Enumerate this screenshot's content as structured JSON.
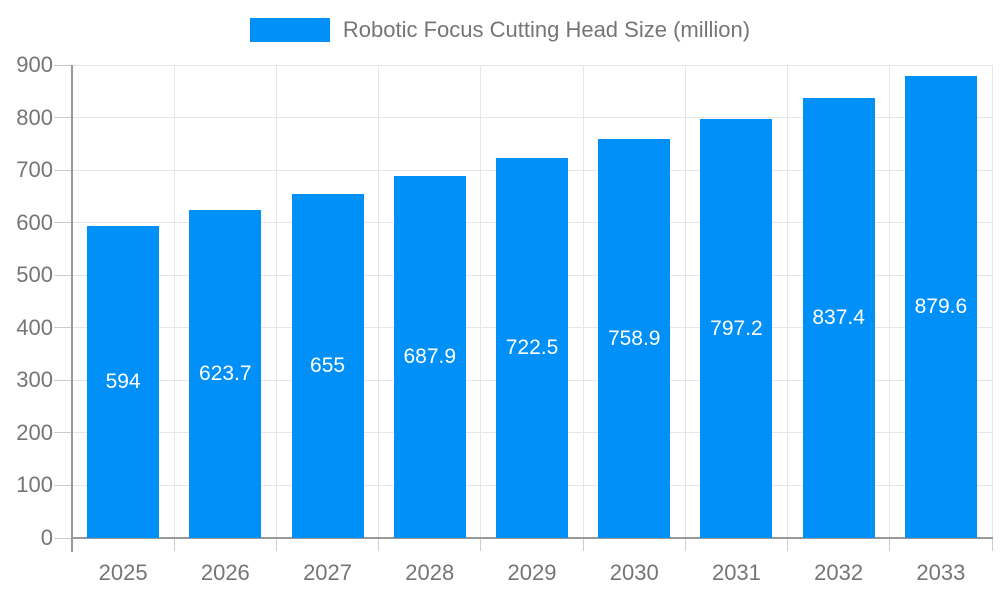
{
  "chart_data": {
    "type": "bar",
    "title": "Robotic Focus Cutting Head Size (million)",
    "categories": [
      "2025",
      "2026",
      "2027",
      "2028",
      "2029",
      "2030",
      "2031",
      "2032",
      "2033"
    ],
    "values": [
      594,
      623.7,
      655,
      687.9,
      722.5,
      758.9,
      797.2,
      837.4,
      879.6
    ],
    "value_labels": [
      "594",
      "623.7",
      "655",
      "687.9",
      "722.5",
      "758.9",
      "797.2",
      "837.4",
      "879.6"
    ],
    "yticks": [
      "0",
      "100",
      "200",
      "300",
      "400",
      "500",
      "600",
      "700",
      "800",
      "900"
    ],
    "ylim": [
      0,
      900
    ],
    "ytick_interval": 100,
    "grid": true,
    "legend_position": "top",
    "xlabel": "",
    "ylabel": "",
    "colors": {
      "bar": "#0190f8",
      "axis_line": "#999999",
      "grid_line": "#e6e6e6",
      "tick_line": "#cccccc",
      "axis_text": "#757575",
      "value_text": "#ffffff",
      "background": "#ffffff"
    }
  }
}
